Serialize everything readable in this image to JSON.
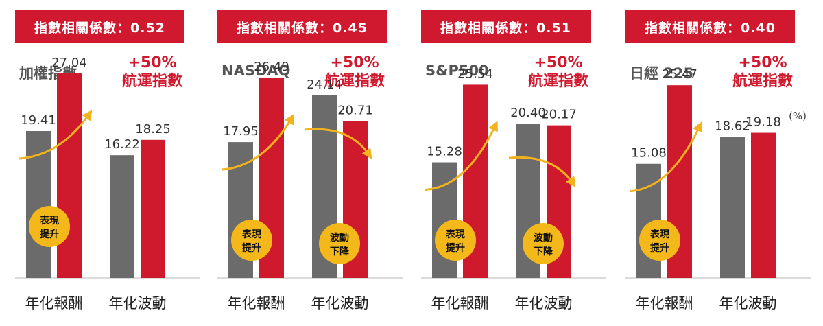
{
  "chart_data": [
    {
      "type": "bar",
      "badge": "指數相關係數：0.52",
      "index_name": "加權指數",
      "compare_line1": "+50%",
      "compare_line2": "航運指數",
      "categories": [
        "年化報酬",
        "年化波動"
      ],
      "series": [
        {
          "values": [
            19.41,
            16.22
          ]
        },
        {
          "values": [
            27.04,
            18.25
          ]
        }
      ],
      "value_labels": [
        [
          "19.41",
          "27.04"
        ],
        [
          "16.22",
          "18.25"
        ]
      ],
      "annotation": {
        "direction": "up",
        "group": 0,
        "line1": "表現",
        "line2": "提升"
      }
    },
    {
      "type": "bar",
      "badge": "指數相關係數：0.45",
      "index_name": "NASDAQ",
      "compare_line1": "+50%",
      "compare_line2": "航運指數",
      "categories": [
        "年化報酬",
        "年化波動"
      ],
      "series": [
        {
          "values": [
            17.95,
            24.14
          ]
        },
        {
          "values": [
            26.49,
            20.71
          ]
        }
      ],
      "value_labels": [
        [
          "17.95",
          "26.49"
        ],
        [
          "24.14",
          "20.71"
        ]
      ],
      "annotation_up": {
        "line1": "表現",
        "line2": "提升"
      },
      "annotation_down": {
        "line1": "波動",
        "line2": "下降"
      }
    },
    {
      "type": "bar",
      "badge": "指數相關係數：0.51",
      "index_name": "S&P500",
      "compare_line1": "+50%",
      "compare_line2": "航運指數",
      "categories": [
        "年化報酬",
        "年化波動"
      ],
      "series": [
        {
          "values": [
            15.28,
            20.4
          ]
        },
        {
          "values": [
            25.54,
            20.17
          ]
        }
      ],
      "value_labels": [
        [
          "15.28",
          "25.54"
        ],
        [
          "20.40",
          "20.17"
        ]
      ],
      "annotation_up": {
        "line1": "表現",
        "line2": "提升"
      },
      "annotation_down": {
        "line1": "波動",
        "line2": "下降"
      }
    },
    {
      "type": "bar",
      "badge": "指數相關係數：0.40",
      "index_name": "日經 225",
      "compare_line1": "+50%",
      "compare_line2": "航運指數",
      "categories": [
        "年化報酬",
        "年化波動"
      ],
      "series": [
        {
          "values": [
            15.08,
            18.62
          ]
        },
        {
          "values": [
            25.47,
            19.18
          ]
        }
      ],
      "value_labels": [
        [
          "15.08",
          "25.47"
        ],
        [
          "18.62",
          "19.18"
        ]
      ],
      "annotation_up": {
        "line1": "表現",
        "line2": "提升"
      }
    }
  ],
  "unit_label": "(%)",
  "colors": {
    "gray_bar": "#6b6b6b",
    "red_bar": "#cf1a2d",
    "badge_bg": "#d0192e",
    "arrow": "#f2b31c",
    "circle": "#f4b81a",
    "compare_text": "#d0192e",
    "axis": "#cfcfcf"
  }
}
